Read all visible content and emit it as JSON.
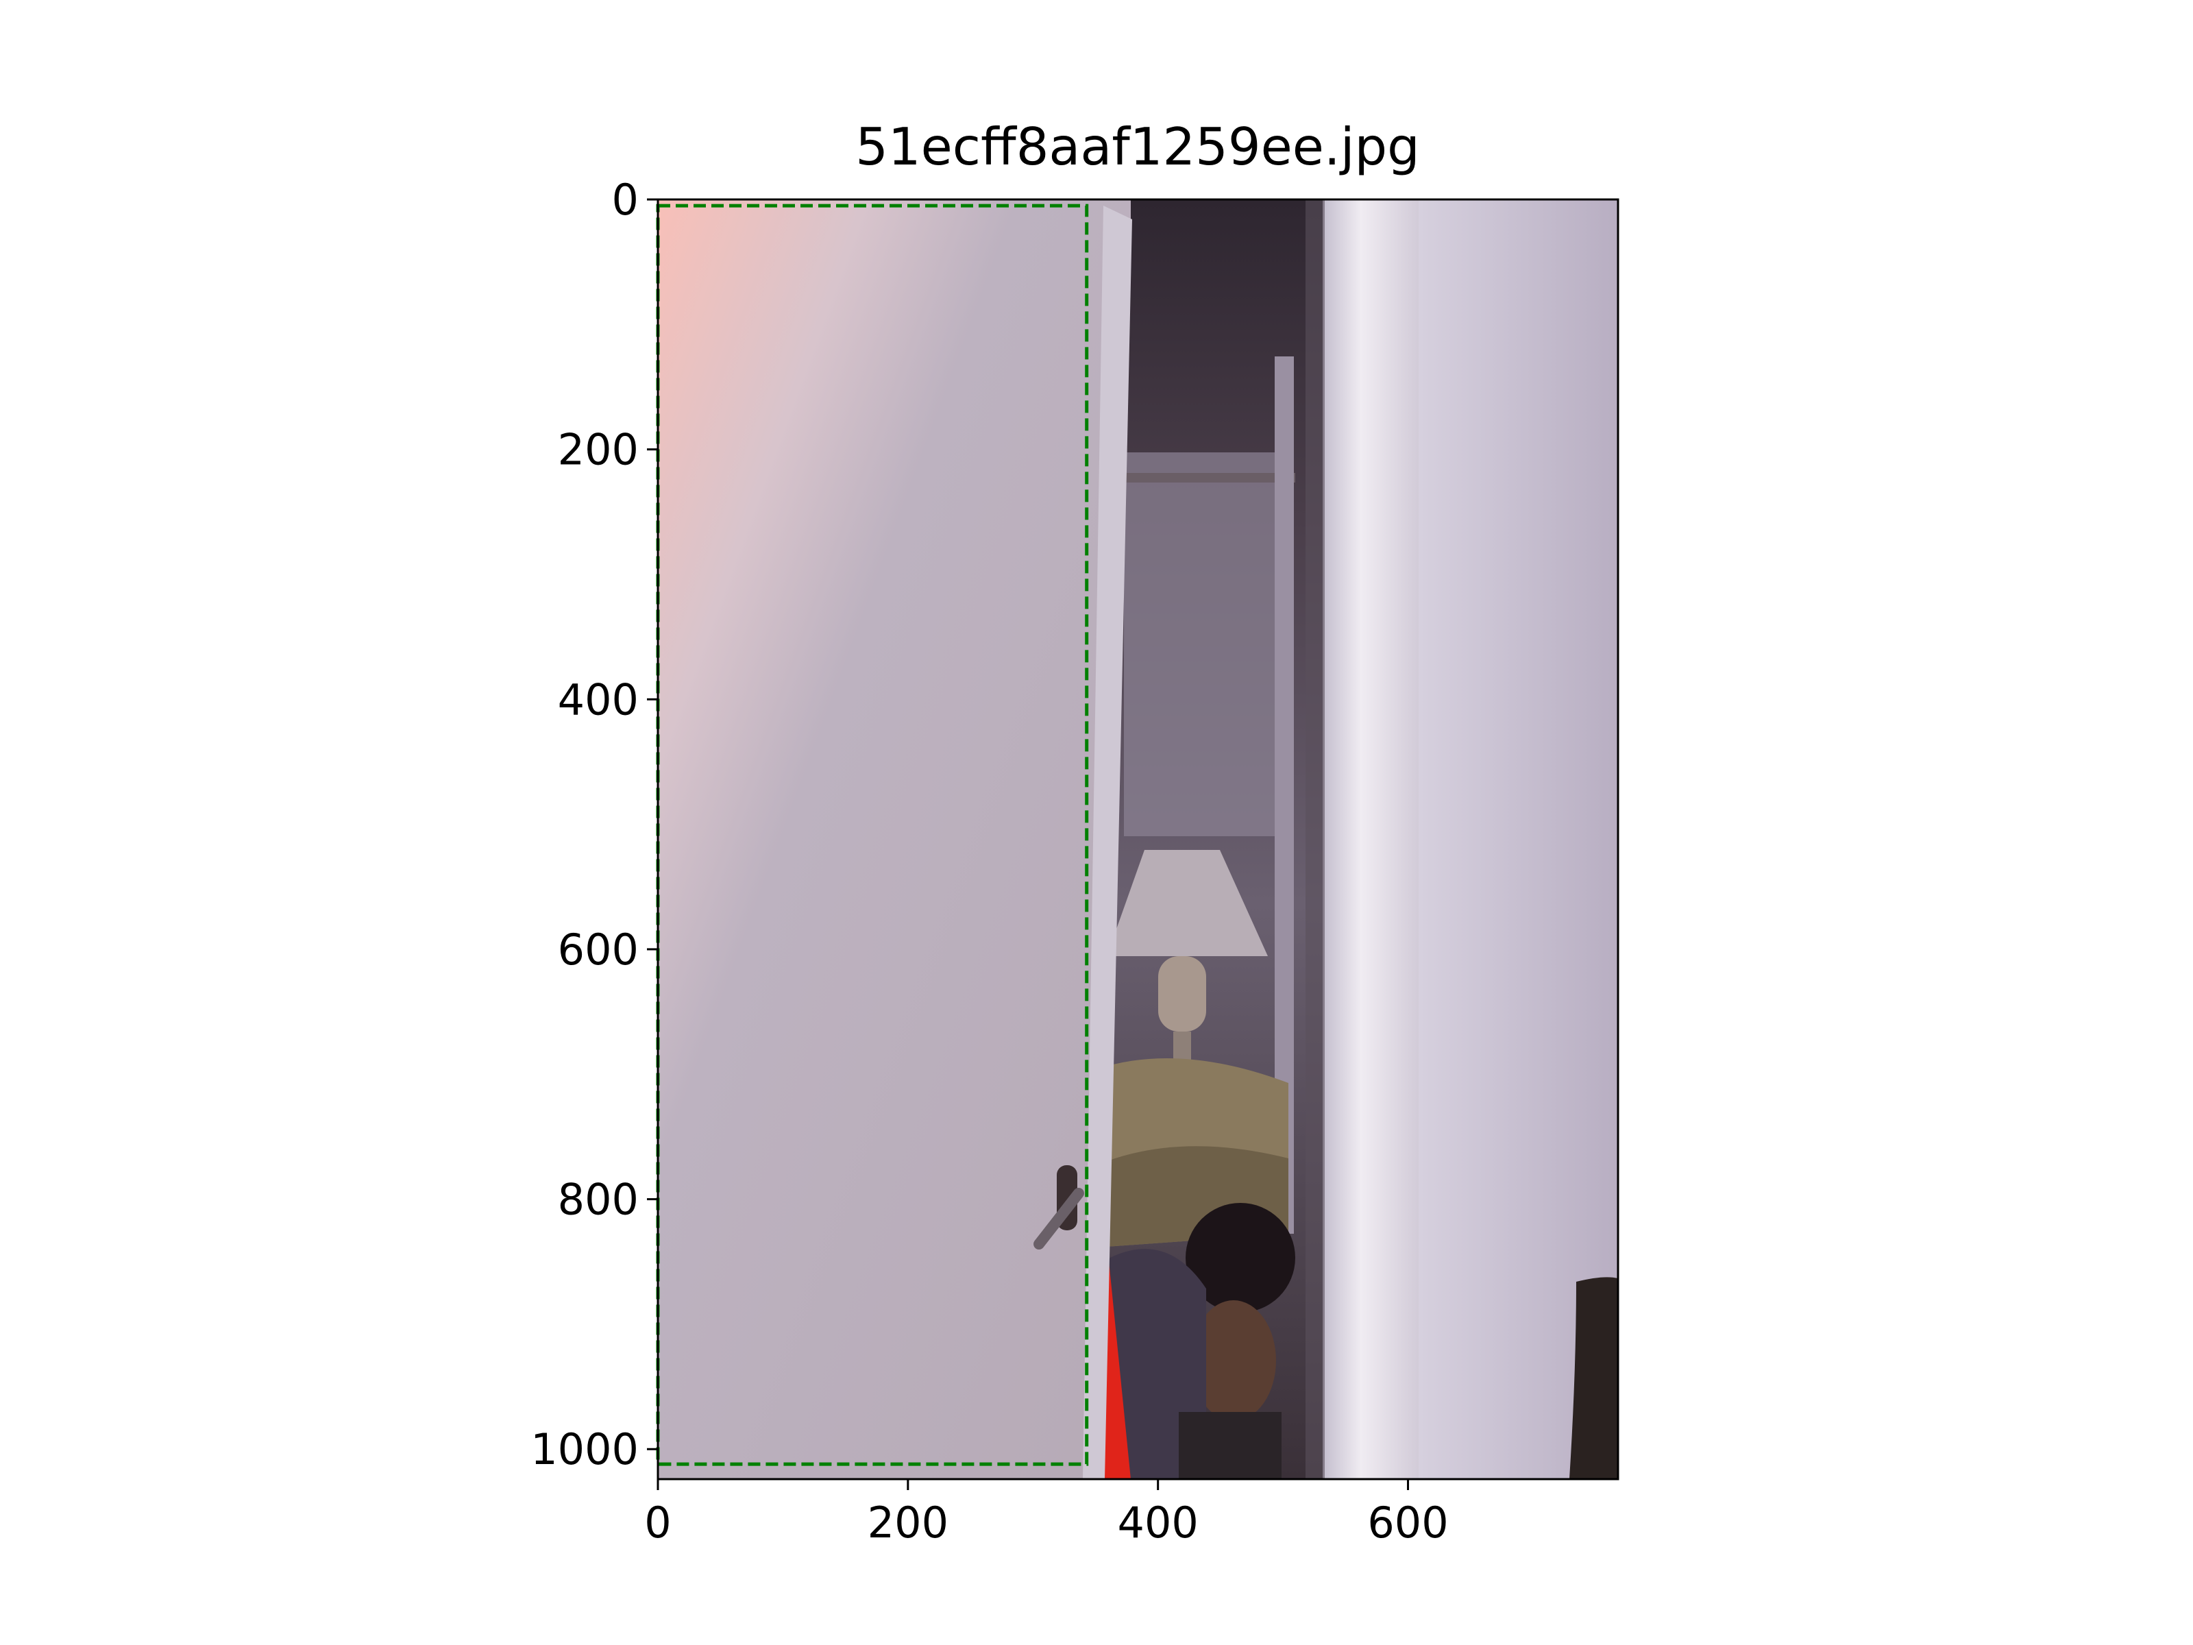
{
  "figure": {
    "title": "51ecff8aaf1259ee.jpg"
  },
  "axes": {
    "x_ticks": [
      0,
      200,
      400,
      600
    ],
    "y_ticks": [
      0,
      200,
      400,
      600,
      800,
      1000
    ],
    "x_range": [
      0,
      768
    ],
    "y_range": [
      1024,
      0
    ]
  },
  "annotation": {
    "style": "dashed",
    "color": "#008000",
    "box": {
      "x_min": 0,
      "y_min": 5,
      "x_max": 343,
      "y_max": 1012
    }
  },
  "colors": {
    "door_main": "#bdb3c0",
    "door_highlight": "#f8c4bc",
    "dark_room": "#3c3038",
    "frame_white": "#e4e0e8",
    "wall_right": "#c9c2d4",
    "lampshade": "#b8aeb6",
    "bedding": "#8a7a5e",
    "skin": "#5a3e32",
    "hair": "#1c1418",
    "red_strap": "#e0241a"
  }
}
